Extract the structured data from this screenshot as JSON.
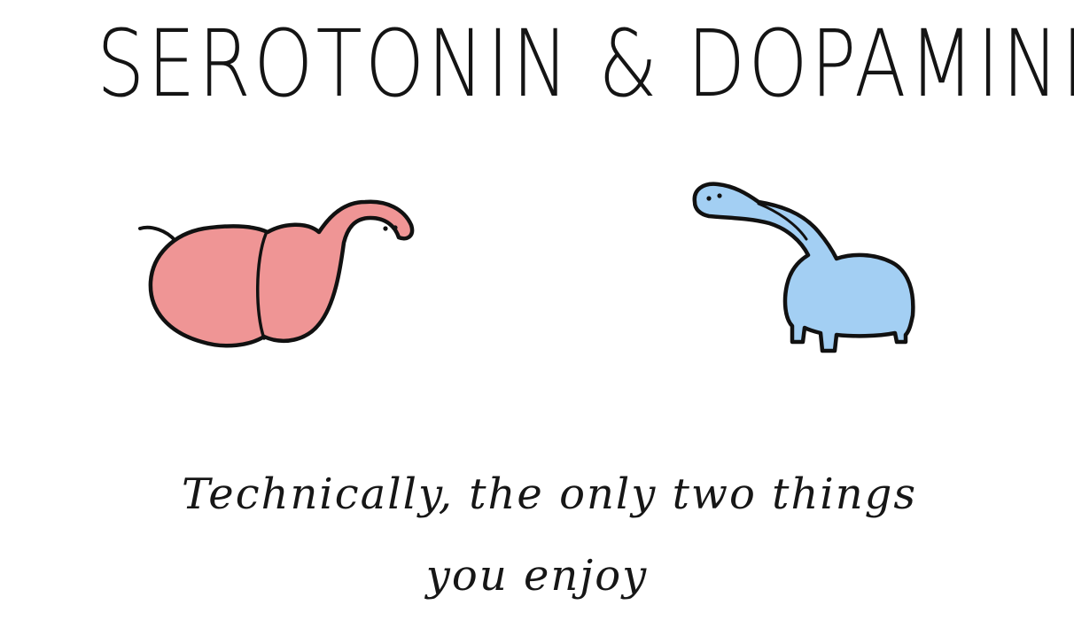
{
  "title": "SEROTONIN & DOPAMINE",
  "caption": {
    "line1": "Technically, the only two things",
    "line2": "you enjoy"
  },
  "characters": [
    {
      "name": "serotonin",
      "fill": "#ef9595",
      "outline": "#111111"
    },
    {
      "name": "dopamine",
      "fill": "#a3cff3",
      "outline": "#111111"
    }
  ]
}
